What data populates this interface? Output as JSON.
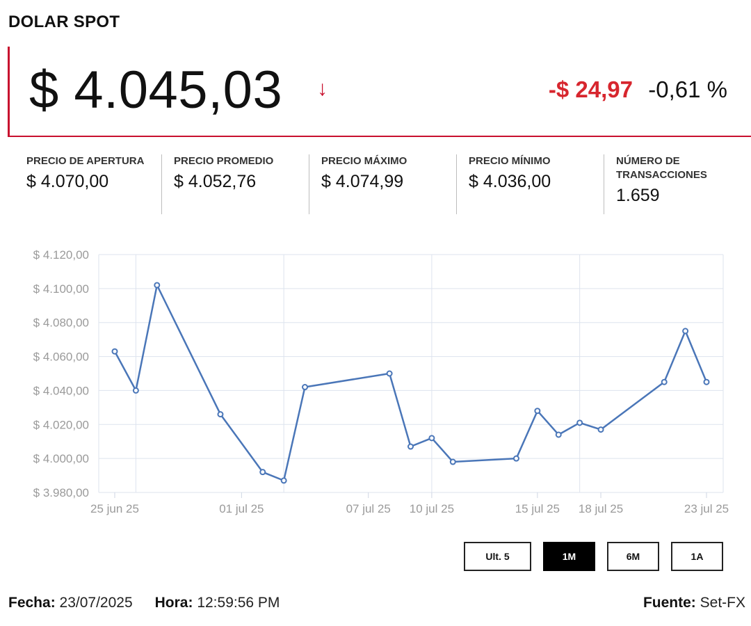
{
  "header": {
    "title": "DOLAR SPOT"
  },
  "quote": {
    "price": "$ 4.045,03",
    "arrow": "↓",
    "change": "-$ 24,97",
    "change_pct": "-0,61 %",
    "down_color": "#d7262e"
  },
  "stats": [
    {
      "label": "PRECIO DE APERTURA",
      "value": "$ 4.070,00"
    },
    {
      "label": "PRECIO PROMEDIO",
      "value": "$ 4.052,76"
    },
    {
      "label": "PRECIO MÁXIMO",
      "value": "$ 4.074,99"
    },
    {
      "label": "PRECIO MÍNIMO",
      "value": "$ 4.036,00"
    },
    {
      "label": "NÚMERO DE TRANSACCIONES",
      "value": "1.659"
    }
  ],
  "range_buttons": [
    {
      "label": "Ult. 5",
      "active": false
    },
    {
      "label": "1M",
      "active": true
    },
    {
      "label": "6M",
      "active": false
    },
    {
      "label": "1A",
      "active": false
    }
  ],
  "footer": {
    "fecha_label": "Fecha:",
    "fecha": "23/07/2025",
    "hora_label": "Hora:",
    "hora": "12:59:56 PM",
    "fuente_label": "Fuente:",
    "fuente": "Set-FX"
  },
  "chart_data": {
    "type": "line",
    "line_color": "#4a76b8",
    "grid": true,
    "ylim": [
      3980,
      4120
    ],
    "yticks": [
      3980,
      4000,
      4020,
      4040,
      4060,
      4080,
      4100,
      4120
    ],
    "ytick_labels": [
      "$ 3.980,00",
      "$ 4.000,00",
      "$ 4.020,00",
      "$ 4.040,00",
      "$ 4.060,00",
      "$ 4.080,00",
      "$ 4.100,00",
      "$ 4.120,00"
    ],
    "x": [
      "2025-06-25",
      "2025-06-26",
      "2025-06-27",
      "2025-06-30",
      "2025-07-02",
      "2025-07-03",
      "2025-07-04",
      "2025-07-08",
      "2025-07-09",
      "2025-07-10",
      "2025-07-11",
      "2025-07-14",
      "2025-07-15",
      "2025-07-16",
      "2025-07-17",
      "2025-07-18",
      "2025-07-21",
      "2025-07-22",
      "2025-07-23"
    ],
    "values": [
      4063,
      4040,
      4102,
      4026,
      3992,
      3987,
      4042,
      4050,
      4007,
      4012,
      3998,
      4000,
      4028,
      4014,
      4021,
      4017,
      4045,
      4075,
      4045
    ],
    "xtick_dates": [
      "2025-06-25",
      "2025-07-01",
      "2025-07-07",
      "2025-07-10",
      "2025-07-15",
      "2025-07-18",
      "2025-07-23"
    ],
    "xtick_labels": [
      "25 jun 25",
      "01 jul 25",
      "07 jul 25",
      "10 jul 25",
      "15 jul 25",
      "18 jul 25",
      "23 jul 25"
    ]
  }
}
